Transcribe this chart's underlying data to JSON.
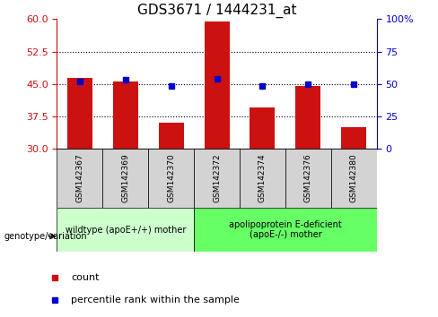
{
  "title": "GDS3671 / 1444231_at",
  "categories": [
    "GSM142367",
    "GSM142369",
    "GSM142370",
    "GSM142372",
    "GSM142374",
    "GSM142376",
    "GSM142380"
  ],
  "bar_values": [
    46.5,
    45.5,
    36.0,
    59.5,
    39.5,
    44.5,
    35.0
  ],
  "bar_bottom": 30,
  "blue_values": [
    45.5,
    46.0,
    44.5,
    46.2,
    44.5,
    45.0,
    45.0
  ],
  "bar_color": "#cc1111",
  "blue_color": "#0000cc",
  "ylim_left": [
    30,
    60
  ],
  "ylim_right": [
    0,
    100
  ],
  "yticks_left": [
    30,
    37.5,
    45,
    52.5,
    60
  ],
  "yticks_right": [
    0,
    25,
    50,
    75,
    100
  ],
  "ytick_labels_right": [
    "0",
    "25",
    "50",
    "75",
    "100%"
  ],
  "hlines": [
    37.5,
    45.0,
    52.5
  ],
  "group1_label": "wildtype (apoE+/+) mother",
  "group2_label": "apolipoprotein E-deficient\n(apoE-/-) mother",
  "group1_indices": [
    0,
    1,
    2
  ],
  "group2_indices": [
    3,
    4,
    5,
    6
  ],
  "group1_color": "#ccffcc",
  "group2_color": "#66ff66",
  "genotype_label": "genotype/variation",
  "legend_count_label": "count",
  "legend_percentile_label": "percentile rank within the sample",
  "title_fontsize": 11,
  "tick_fontsize": 8,
  "label_fontsize": 8,
  "group_label_fontsize": 7,
  "sample_label_fontsize": 6.5,
  "background_color": "#ffffff"
}
